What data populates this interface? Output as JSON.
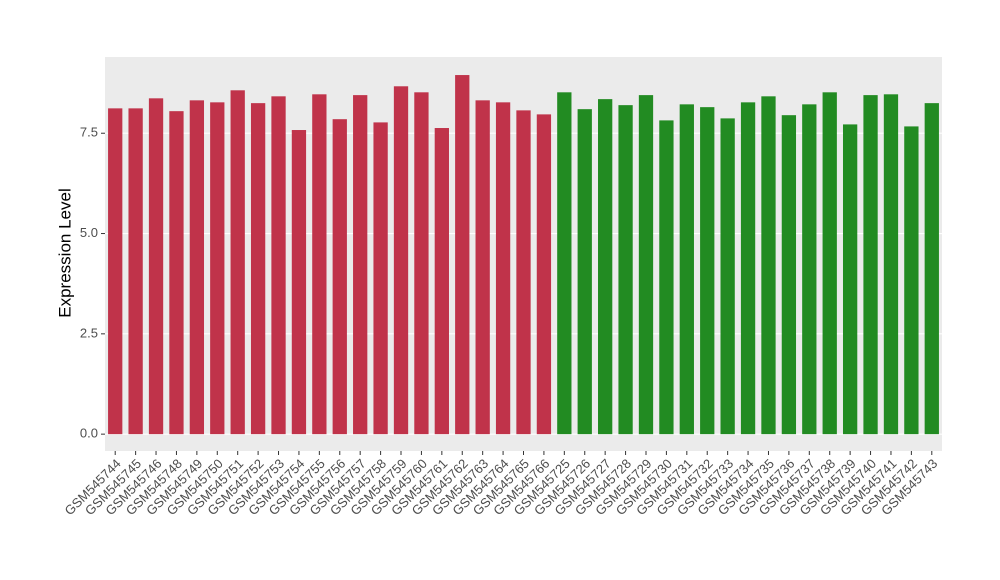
{
  "chart_data": {
    "type": "bar",
    "y_label": "Expression Level",
    "categories": [
      "GSM545744",
      "GSM545745",
      "GSM545746",
      "GSM545748",
      "GSM545749",
      "GSM545750",
      "GSM545751",
      "GSM545752",
      "GSM545753",
      "GSM545754",
      "GSM545755",
      "GSM545756",
      "GSM545757",
      "GSM545758",
      "GSM545759",
      "GSM545760",
      "GSM545761",
      "GSM545762",
      "GSM545763",
      "GSM545764",
      "GSM545765",
      "GSM545766",
      "GSM545725",
      "GSM545726",
      "GSM545727",
      "GSM545728",
      "GSM545729",
      "GSM545730",
      "GSM545731",
      "GSM545732",
      "GSM545733",
      "GSM545734",
      "GSM545735",
      "GSM545736",
      "GSM545737",
      "GSM545738",
      "GSM545739",
      "GSM545740",
      "GSM545741",
      "GSM545742",
      "GSM545743"
    ],
    "values": [
      8.12,
      8.12,
      8.37,
      8.05,
      8.32,
      8.27,
      8.57,
      8.25,
      8.42,
      7.58,
      8.47,
      7.85,
      8.45,
      7.77,
      8.67,
      8.52,
      7.63,
      8.95,
      8.32,
      8.27,
      8.07,
      7.97,
      8.52,
      8.1,
      8.35,
      8.2,
      8.45,
      7.82,
      8.22,
      8.15,
      7.87,
      8.27,
      8.42,
      7.95,
      8.22,
      8.52,
      7.72,
      8.45,
      8.47,
      7.67,
      8.25
    ],
    "bar_colors": [
      "#c0334a",
      "#c0334a",
      "#c0334a",
      "#c0334a",
      "#c0334a",
      "#c0334a",
      "#c0334a",
      "#c0334a",
      "#c0334a",
      "#c0334a",
      "#c0334a",
      "#c0334a",
      "#c0334a",
      "#c0334a",
      "#c0334a",
      "#c0334a",
      "#c0334a",
      "#c0334a",
      "#c0334a",
      "#c0334a",
      "#c0334a",
      "#c0334a",
      "#228b22",
      "#228b22",
      "#228b22",
      "#228b22",
      "#228b22",
      "#228b22",
      "#228b22",
      "#228b22",
      "#228b22",
      "#228b22",
      "#228b22",
      "#228b22",
      "#228b22",
      "#228b22",
      "#228b22",
      "#228b22",
      "#228b22",
      "#228b22",
      "#228b22"
    ],
    "ylim": [
      -0.42,
      9.4
    ],
    "yticks": [
      {
        "value": 0,
        "label": "0.0"
      },
      2.5,
      {
        "value": 5,
        "label": "5.0"
      },
      7.5
    ],
    "grid": true,
    "panel_background": "#ebebeb"
  }
}
